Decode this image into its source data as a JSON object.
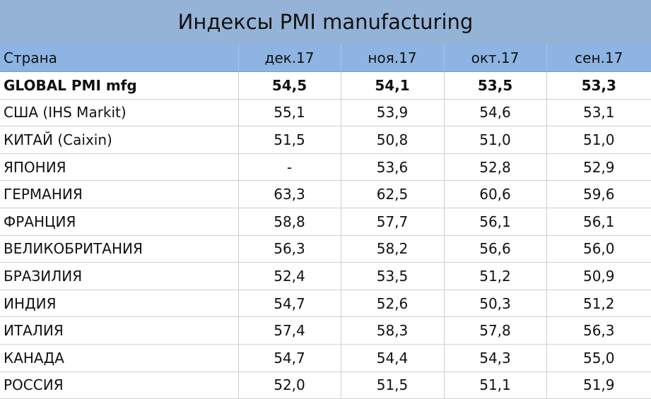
{
  "title": "Индексы PMI manufacturing",
  "table": {
    "columns": [
      "Страна",
      "дек.17",
      "ноя.17",
      "окт.17",
      "сен.17"
    ],
    "rows": [
      [
        "GLOBAL PMI mfg",
        "54,5",
        "54,1",
        "53,5",
        "53,3"
      ],
      [
        "США (IHS Markit)",
        "55,1",
        "53,9",
        "54,6",
        "53,1"
      ],
      [
        "КИТАЙ (Caixin)",
        "51,5",
        "50,8",
        "51,0",
        "51,0"
      ],
      [
        "ЯПОНИЯ",
        "-",
        "53,6",
        "52,8",
        "52,9"
      ],
      [
        "ГЕРМАНИЯ",
        "63,3",
        "62,5",
        "60,6",
        "59,6"
      ],
      [
        "ФРАНЦИЯ",
        "58,8",
        "57,7",
        "56,1",
        "56,1"
      ],
      [
        "ВЕЛИКОБРИТАНИЯ",
        "56,3",
        "58,2",
        "56,6",
        "56,0"
      ],
      [
        "БРАЗИЛИЯ",
        "52,4",
        "53,5",
        "51,2",
        "50,9"
      ],
      [
        "ИНДИЯ",
        "54,7",
        "52,6",
        "50,3",
        "51,2"
      ],
      [
        "ИТАЛИЯ",
        "57,4",
        "58,3",
        "57,8",
        "56,3"
      ],
      [
        "КАНАДА",
        "54,7",
        "54,4",
        "54,3",
        "55,0"
      ],
      [
        "РОССИЯ",
        "52,0",
        "51,5",
        "51,1",
        "51,9"
      ]
    ]
  }
}
